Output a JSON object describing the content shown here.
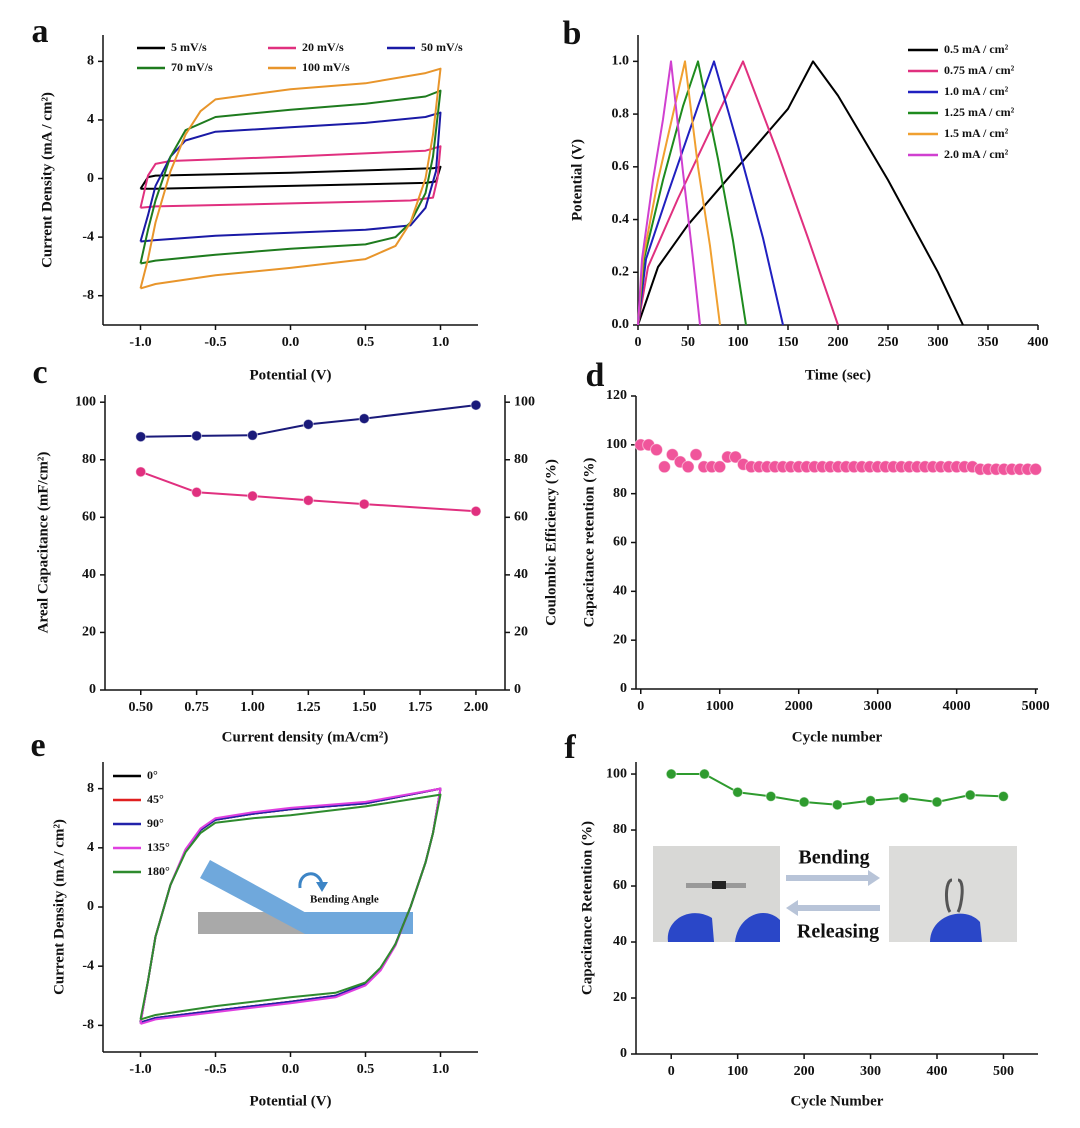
{
  "chart_data": [
    {
      "type": "line",
      "panel_label": "a",
      "xlabel": "Potential (V)",
      "ylabel": "Current Density (mA / cm²)",
      "xlim": [
        -1.25,
        1.25
      ],
      "ylim": [
        -10,
        9.8
      ],
      "xticks": [
        {
          "value": -1,
          "label": "-1.0"
        },
        -0.5,
        {
          "value": 0,
          "label": "0.0"
        },
        0.5,
        {
          "value": 1,
          "label": "1.0"
        }
      ],
      "yticks": [
        -8,
        -4,
        0,
        4,
        8
      ],
      "series": [
        {
          "name": "5 mV/s",
          "color": "#000000",
          "x": [
            -1,
            -0.95,
            -0.9,
            0,
            0.95,
            1,
            0.97,
            0.9,
            0,
            -0.9,
            -1
          ],
          "values": [
            -0.7,
            0.1,
            0.2,
            0.4,
            0.7,
            0.8,
            -0.2,
            -0.3,
            -0.5,
            -0.7,
            -0.7
          ]
        },
        {
          "name": "20 mV/s",
          "color": "#e0307f",
          "x": [
            -1,
            -0.95,
            -0.9,
            -0.8,
            0,
            0.9,
            1,
            0.98,
            0.95,
            0.8,
            0,
            -0.9,
            -1
          ],
          "values": [
            -2,
            0.2,
            1.0,
            1.2,
            1.5,
            1.9,
            2.2,
            0,
            -1.3,
            -1.5,
            -1.7,
            -1.9,
            -2
          ]
        },
        {
          "name": "50 mV/s",
          "color": "#1a1aa6",
          "x": [
            -1,
            -0.95,
            -0.9,
            -0.8,
            -0.7,
            -0.5,
            0,
            0.5,
            0.9,
            1,
            0.97,
            0.9,
            0.8,
            0.5,
            0,
            -0.5,
            -0.9,
            -1
          ],
          "values": [
            -4.3,
            -2.5,
            -0.5,
            1.5,
            2.6,
            3.2,
            3.5,
            3.8,
            4.2,
            4.5,
            0.5,
            -2.0,
            -3.2,
            -3.5,
            -3.7,
            -3.9,
            -4.2,
            -4.3
          ]
        },
        {
          "name": "70 mV/s",
          "color": "#1e7b1e",
          "x": [
            -1,
            -0.95,
            -0.9,
            -0.8,
            -0.7,
            -0.5,
            0,
            0.5,
            0.9,
            1,
            0.95,
            0.9,
            0.8,
            0.7,
            0.5,
            0,
            -0.5,
            -0.9,
            -1
          ],
          "values": [
            -5.8,
            -3.5,
            -1.5,
            1.5,
            3.3,
            4.2,
            4.7,
            5.1,
            5.6,
            6.0,
            1.5,
            -1.0,
            -3.0,
            -4.0,
            -4.5,
            -4.8,
            -5.2,
            -5.6,
            -5.8
          ]
        },
        {
          "name": "100 mV/s",
          "color": "#e8952b",
          "x": [
            -1,
            -0.95,
            -0.9,
            -0.8,
            -0.7,
            -0.6,
            -0.5,
            0,
            0.5,
            0.9,
            1,
            0.95,
            0.9,
            0.8,
            0.7,
            0.5,
            0,
            -0.5,
            -0.9,
            -1
          ],
          "values": [
            -7.5,
            -5.5,
            -3,
            0.5,
            3.0,
            4.6,
            5.4,
            6.1,
            6.5,
            7.2,
            7.5,
            3,
            0,
            -3,
            -4.6,
            -5.5,
            -6.1,
            -6.6,
            -7.2,
            -7.5
          ]
        }
      ]
    },
    {
      "type": "line",
      "panel_label": "b",
      "xlabel": "Time (sec)",
      "ylabel": "Potential (V)",
      "xlim": [
        0,
        400
      ],
      "ylim": [
        0,
        1.1
      ],
      "xticks": [
        0,
        50,
        100,
        150,
        200,
        250,
        300,
        350,
        400
      ],
      "yticks": [
        {
          "value": 0,
          "label": "0.0"
        },
        0.2,
        0.4,
        0.6,
        0.8,
        {
          "value": 1,
          "label": "1.0"
        }
      ],
      "series": [
        {
          "name": "0.5 mA / cm²",
          "color": "#000000",
          "x": [
            0,
            20,
            50,
            100,
            150,
            175,
            200,
            250,
            300,
            325
          ],
          "values": [
            0,
            0.22,
            0.38,
            0.6,
            0.82,
            1.0,
            0.87,
            0.55,
            0.2,
            0
          ]
        },
        {
          "name": "0.75 mA / cm²",
          "color": "#e0307f",
          "x": [
            0,
            10,
            40,
            80,
            105,
            140,
            170,
            200
          ],
          "values": [
            0,
            0.22,
            0.48,
            0.8,
            1.0,
            0.65,
            0.33,
            0
          ]
        },
        {
          "name": "1.0 mA / cm²",
          "color": "#2020c0",
          "x": [
            0,
            8,
            30,
            60,
            76,
            100,
            125,
            145
          ],
          "values": [
            0,
            0.25,
            0.5,
            0.83,
            1.0,
            0.68,
            0.33,
            0
          ]
        },
        {
          "name": "1.25 mA / cm²",
          "color": "#1e8b1e",
          "x": [
            0,
            6,
            25,
            45,
            60,
            80,
            95,
            108
          ],
          "values": [
            0,
            0.25,
            0.55,
            0.83,
            1.0,
            0.63,
            0.32,
            0
          ]
        },
        {
          "name": "1.5 mA / cm²",
          "color": "#f0a030",
          "x": [
            0,
            5,
            20,
            35,
            47,
            60,
            72,
            82
          ],
          "values": [
            0,
            0.25,
            0.55,
            0.8,
            1.0,
            0.6,
            0.3,
            0
          ]
        },
        {
          "name": "2.0 mA / cm²",
          "color": "#d040d0",
          "x": [
            0,
            4,
            15,
            25,
            33,
            45,
            55,
            62
          ],
          "values": [
            0,
            0.25,
            0.55,
            0.78,
            1.0,
            0.58,
            0.25,
            0
          ]
        }
      ]
    },
    {
      "type": "line",
      "panel_label": "c",
      "xlabel": "Current density (mA/cm²)",
      "ylabel": "Areal Capacitance (mF/cm²)",
      "y2label": "Coulombic Efficiency (%)",
      "markers": true,
      "xlim": [
        0.34,
        2.13
      ],
      "ylim": [
        0,
        102.5
      ],
      "y2lim": [
        0,
        102.5
      ],
      "xticks": [
        {
          "value": 0.5,
          "label": "0.50"
        },
        0.75,
        {
          "value": 1,
          "label": "1.00"
        },
        1.25,
        {
          "value": 1.5,
          "label": "1.50"
        },
        1.75,
        {
          "value": 2,
          "label": "2.00"
        }
      ],
      "yticks": [
        0,
        20,
        40,
        60,
        80,
        100
      ],
      "y2ticks": [
        0,
        20,
        40,
        60,
        80,
        100
      ],
      "x": [
        0.5,
        0.75,
        1.0,
        1.25,
        1.5,
        2.0
      ],
      "series": [
        {
          "color": "#e0307f",
          "values": [
            75.8,
            68.7,
            67.4,
            65.9,
            64.6,
            62.1
          ]
        },
        {
          "color": "#1a1a7a",
          "axis": "y2",
          "values": [
            88,
            88.3,
            88.5,
            92.3,
            94.3,
            99
          ]
        }
      ]
    },
    {
      "type": "scatter",
      "panel_label": "d",
      "xlabel": "Cycle number",
      "ylabel": "Capacitance retention (%)",
      "xlim": [
        -60,
        5030
      ],
      "ylim": [
        0,
        120
      ],
      "xticks": [
        0,
        1000,
        2000,
        3000,
        4000,
        5000
      ],
      "yticks": [
        0,
        20,
        40,
        60,
        80,
        100,
        120
      ],
      "x": [
        0,
        100,
        200,
        300,
        400,
        500,
        600,
        700,
        800,
        900,
        1000,
        1100,
        1200,
        1300,
        1400,
        1500,
        1600,
        1700,
        1800,
        1900,
        2000,
        2100,
        2200,
        2300,
        2400,
        2500,
        2600,
        2700,
        2800,
        2900,
        3000,
        3100,
        3200,
        3300,
        3400,
        3500,
        3600,
        3700,
        3800,
        3900,
        4000,
        4100,
        4200,
        4300,
        4400,
        4500,
        4600,
        4700,
        4800,
        4900,
        5000
      ],
      "series": [
        {
          "color": "#f0559b",
          "values": [
            100,
            100,
            98,
            91,
            96,
            93,
            91,
            96,
            91,
            91,
            91,
            95,
            95,
            92,
            91,
            91,
            91,
            91,
            91,
            91,
            91,
            91,
            91,
            91,
            91,
            91,
            91,
            91,
            91,
            91,
            91,
            91,
            91,
            91,
            91,
            91,
            91,
            91,
            91,
            91,
            91,
            91,
            91,
            90,
            90,
            90,
            90,
            90,
            90,
            90,
            90
          ]
        }
      ]
    },
    {
      "type": "line",
      "panel_label": "e",
      "xlabel": "Potential (V)",
      "ylabel": "Current Density (mA / cm²)",
      "annotation": "Bending Angle",
      "xlim": [
        -1.25,
        1.25
      ],
      "ylim": [
        -9.8,
        9.8
      ],
      "xticks": [
        {
          "value": -1,
          "label": "-1.0"
        },
        -0.5,
        {
          "value": 0,
          "label": "0.0"
        },
        0.5,
        {
          "value": 1,
          "label": "1.0"
        }
      ],
      "yticks": [
        -8,
        -4,
        0,
        4,
        8
      ],
      "x": [
        -1,
        -0.95,
        -0.9,
        -0.8,
        -0.7,
        -0.6,
        -0.5,
        -0.25,
        0,
        0.5,
        1,
        0.95,
        0.9,
        0.8,
        0.7,
        0.6,
        0.5,
        0.3,
        0,
        -0.5,
        -0.9,
        -1
      ],
      "series": [
        {
          "name": "0°",
          "color": "#000000",
          "values": [
            -7.8,
            -5,
            -2,
            1.5,
            3.8,
            5.2,
            5.9,
            6.3,
            6.6,
            7.0,
            8.0,
            5,
            3,
            0,
            -2.5,
            -4.2,
            -5.2,
            -6.0,
            -6.4,
            -7.0,
            -7.5,
            -7.8
          ]
        },
        {
          "name": "45°",
          "color": "#e02020",
          "values": [
            -7.8,
            -5,
            -2,
            1.5,
            3.8,
            5.2,
            5.9,
            6.3,
            6.6,
            7.0,
            8.0,
            5,
            3,
            0,
            -2.5,
            -4.2,
            -5.2,
            -6.0,
            -6.4,
            -7.0,
            -7.5,
            -7.8
          ]
        },
        {
          "name": "90°",
          "color": "#2222aa",
          "values": [
            -7.8,
            -5,
            -2,
            1.5,
            3.8,
            5.2,
            5.9,
            6.3,
            6.6,
            7.0,
            8.0,
            5,
            3,
            0,
            -2.5,
            -4.2,
            -5.2,
            -6.0,
            -6.4,
            -7.0,
            -7.5,
            -7.8
          ]
        },
        {
          "name": "135°",
          "color": "#e040e0",
          "values": [
            -7.9,
            -5,
            -2,
            1.5,
            3.9,
            5.3,
            6.0,
            6.4,
            6.7,
            7.1,
            8.0,
            5,
            3,
            0,
            -2.6,
            -4.3,
            -5.3,
            -6.1,
            -6.5,
            -7.1,
            -7.6,
            -7.9
          ]
        },
        {
          "name": "180°",
          "color": "#2e8b2e",
          "values": [
            -7.6,
            -5,
            -2,
            1.5,
            3.7,
            5.0,
            5.7,
            6.0,
            6.2,
            6.8,
            7.6,
            5,
            3,
            0,
            -2.5,
            -4.1,
            -5.1,
            -5.8,
            -6.1,
            -6.7,
            -7.3,
            -7.6
          ]
        }
      ]
    },
    {
      "type": "line",
      "panel_label": "f",
      "xlabel": "Cycle Number",
      "ylabel": "Capacitance Retention (%)",
      "markers": true,
      "annotations": [
        "Bending",
        "Releasing"
      ],
      "xlim": [
        -53,
        552
      ],
      "ylim": [
        0,
        104.3
      ],
      "xticks": [
        0,
        100,
        200,
        300,
        400,
        500
      ],
      "yticks": [
        0,
        20,
        40,
        60,
        80,
        100
      ],
      "x": [
        0,
        50,
        100,
        150,
        200,
        250,
        300,
        350,
        400,
        450,
        500
      ],
      "series": [
        {
          "color": "#2e9b2e",
          "values": [
            100,
            100,
            93.5,
            92,
            90,
            89,
            90.5,
            91.5,
            90,
            92.5,
            92
          ]
        }
      ]
    }
  ]
}
